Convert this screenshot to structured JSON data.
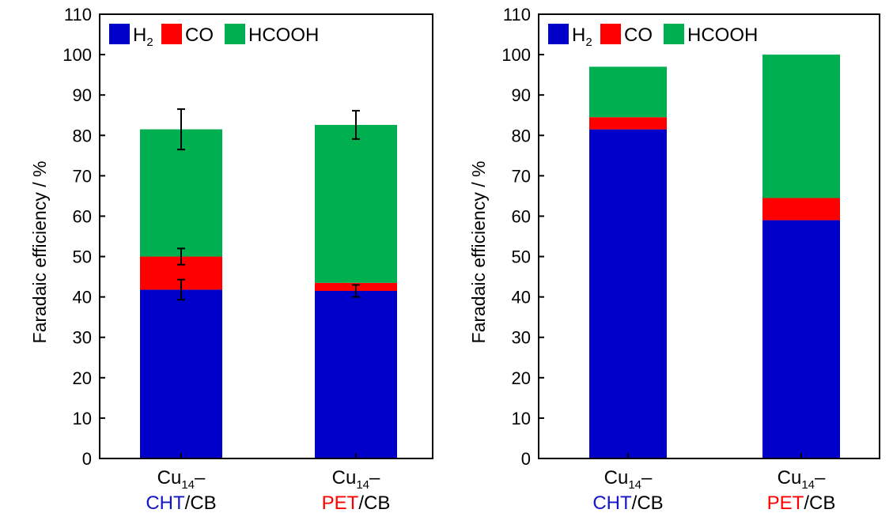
{
  "chart_data": [
    {
      "type": "bar",
      "stacked": true,
      "ylabel": "Faradaic efficiency / %",
      "ylim": [
        0,
        110
      ],
      "yticks": [
        0,
        10,
        20,
        30,
        40,
        50,
        60,
        70,
        80,
        90,
        100,
        110
      ],
      "grid": false,
      "legend_position": "top-left",
      "categories": [
        {
          "prefix": "Cu",
          "sub": "14",
          "suffix": "–",
          "line2_highlight": "CHT",
          "line2_rest": "/CB",
          "highlight_color": "#1515c8"
        },
        {
          "prefix": "Cu",
          "sub": "14",
          "suffix": "–",
          "line2_highlight": "PET",
          "line2_rest": "/CB",
          "highlight_color": "#ff0000"
        }
      ],
      "series": [
        {
          "name": "H",
          "name_sub": "2",
          "color": "#0000c8",
          "values": [
            41.8,
            41.5
          ],
          "error": [
            2.5,
            1.5
          ]
        },
        {
          "name": "CO",
          "name_sub": "",
          "color": "#ff0000",
          "values": [
            8.2,
            2.0
          ],
          "error": [
            2.0,
            0.0
          ]
        },
        {
          "name": "HCOOH",
          "name_sub": "",
          "color": "#00b050",
          "values": [
            31.5,
            39.1
          ],
          "error": [
            5.0,
            3.5
          ]
        }
      ]
    },
    {
      "type": "bar",
      "stacked": true,
      "ylabel": "Faradaic efficiency / %",
      "ylim": [
        0,
        110
      ],
      "yticks": [
        0,
        10,
        20,
        30,
        40,
        50,
        60,
        70,
        80,
        90,
        100,
        110
      ],
      "grid": false,
      "legend_position": "top-left",
      "categories": [
        {
          "prefix": "Cu",
          "sub": "14",
          "suffix": "–",
          "line2_highlight": "CHT",
          "line2_rest": "/CB",
          "highlight_color": "#1515c8"
        },
        {
          "prefix": "Cu",
          "sub": "14",
          "suffix": "–",
          "line2_highlight": "PET",
          "line2_rest": "/CB",
          "highlight_color": "#ff0000"
        }
      ],
      "series": [
        {
          "name": "H",
          "name_sub": "2",
          "color": "#0000c8",
          "values": [
            81.5,
            59.0
          ],
          "error": [
            0,
            0
          ]
        },
        {
          "name": "CO",
          "name_sub": "",
          "color": "#ff0000",
          "values": [
            3.0,
            5.5
          ],
          "error": [
            0,
            0
          ]
        },
        {
          "name": "HCOOH",
          "name_sub": "",
          "color": "#00b050",
          "values": [
            12.5,
            35.5
          ],
          "error": [
            0,
            0
          ]
        }
      ]
    }
  ]
}
